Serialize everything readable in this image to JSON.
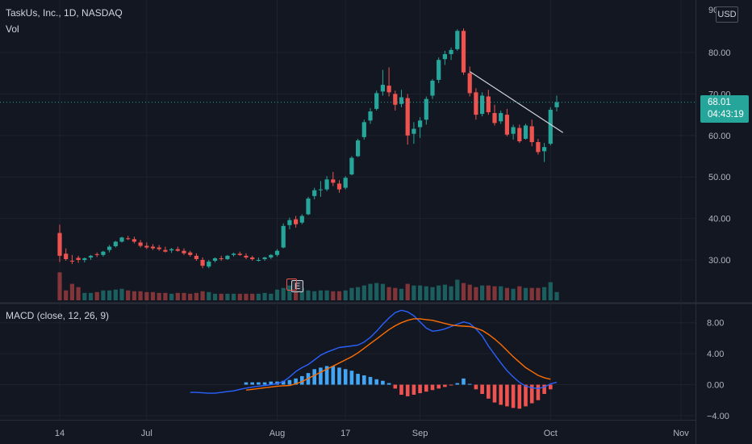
{
  "header": {
    "symbol_line": "TaskUs, Inc., 1D, NASDAQ",
    "vol_label": "Vol"
  },
  "currency_badge": "USD",
  "price_tag": {
    "value": "68.01",
    "countdown": "04:43:19",
    "color": "#26a69a"
  },
  "macd_label": "MACD (close, 12, 26, 9)",
  "earnings_marker": "E",
  "colors": {
    "bg": "#131722",
    "up": "#26a69a",
    "down": "#ef5350",
    "macd_line": "#2962ff",
    "signal_line": "#ff6d00",
    "hist_pos": "#42a5f5",
    "hist_neg": "#ef5350",
    "grid": "#1e222d",
    "text": "#b2b5be"
  },
  "chart_data": [
    {
      "type": "candlestick",
      "panel": "price",
      "ylim": [
        20,
        90
      ],
      "y_ticks": [
        "80.00",
        "70.00",
        "60.00",
        "50.00",
        "40.00",
        "30.00"
      ],
      "y_tick_values": [
        80,
        70,
        60,
        50,
        40,
        30
      ],
      "top_label": "90",
      "x_ticks": [
        "14",
        "Jul",
        "Aug",
        "17",
        "Sep",
        "Oct",
        "Nov"
      ],
      "x_tick_index": [
        0,
        14,
        35,
        46,
        58,
        79,
        100
      ],
      "candles": [
        [
          null,
          36.5,
          38.5,
          29.5,
          31.0
        ],
        [
          31.0,
          31.5,
          32.8,
          29.8,
          30.2
        ],
        [
          30.2,
          29.8,
          31.2,
          29.0,
          29.6
        ],
        [
          29.6,
          30.5,
          31.0,
          29.3,
          30.0
        ],
        [
          30.0,
          30.0,
          30.6,
          29.4,
          30.4
        ],
        [
          30.4,
          30.6,
          31.2,
          30.0,
          31.0
        ],
        [
          31.0,
          31.4,
          31.8,
          30.7,
          31.2
        ],
        [
          31.2,
          31.2,
          32.2,
          30.8,
          32.0
        ],
        [
          32.0,
          32.4,
          33.6,
          31.8,
          33.2
        ],
        [
          33.2,
          33.3,
          34.6,
          33.0,
          34.4
        ],
        [
          34.4,
          34.4,
          35.6,
          34.2,
          35.4
        ],
        [
          35.4,
          35.2,
          35.8,
          34.8,
          35.0
        ],
        [
          35.0,
          35.0,
          35.6,
          34.0,
          34.4
        ],
        [
          34.4,
          34.2,
          34.8,
          33.0,
          33.4
        ],
        [
          33.4,
          33.4,
          34.2,
          32.6,
          33.0
        ],
        [
          33.0,
          33.2,
          33.8,
          32.4,
          32.8
        ],
        [
          32.8,
          33.0,
          33.6,
          32.2,
          32.6
        ],
        [
          32.6,
          32.4,
          33.2,
          31.8,
          32.0
        ],
        [
          32.0,
          32.3,
          32.9,
          31.7,
          32.6
        ],
        [
          32.6,
          32.6,
          33.2,
          32.0,
          32.2
        ],
        [
          32.2,
          32.2,
          32.8,
          31.2,
          31.6
        ],
        [
          31.6,
          31.8,
          32.2,
          30.8,
          31.2
        ],
        [
          31.2,
          31.0,
          31.6,
          29.8,
          30.2
        ],
        [
          30.2,
          30.0,
          30.6,
          28.0,
          28.6
        ],
        [
          28.6,
          28.4,
          30.0,
          28.0,
          29.6
        ],
        [
          29.6,
          29.8,
          30.6,
          29.4,
          30.4
        ],
        [
          30.4,
          30.4,
          31.0,
          29.8,
          30.2
        ],
        [
          30.2,
          30.2,
          31.2,
          30.0,
          31.0
        ],
        [
          31.0,
          31.2,
          31.8,
          30.8,
          31.5
        ],
        [
          31.5,
          31.5,
          32.0,
          31.0,
          31.2
        ],
        [
          31.2,
          31.0,
          31.6,
          30.2,
          30.6
        ],
        [
          30.6,
          30.6,
          31.0,
          29.8,
          30.2
        ],
        [
          30.2,
          30.0,
          30.6,
          29.6,
          30.0
        ],
        [
          30.0,
          30.2,
          30.8,
          29.8,
          30.6
        ],
        [
          30.6,
          30.6,
          31.4,
          30.2,
          31.2
        ],
        [
          31.2,
          31.2,
          32.6,
          30.8,
          32.2
        ],
        [
          32.2,
          33.0,
          38.8,
          32.8,
          38.2
        ],
        [
          38.2,
          38.4,
          40.2,
          37.4,
          39.6
        ],
        [
          39.6,
          39.8,
          40.6,
          37.8,
          38.6
        ],
        [
          38.6,
          39.0,
          41.0,
          38.6,
          40.6
        ],
        [
          40.6,
          41.0,
          45.2,
          40.8,
          44.8
        ],
        [
          44.8,
          45.4,
          47.4,
          44.6,
          46.8
        ],
        [
          46.8,
          46.8,
          49.0,
          45.2,
          47.0
        ],
        [
          47.0,
          47.0,
          50.2,
          46.6,
          49.4
        ],
        [
          49.4,
          49.4,
          51.2,
          47.8,
          48.6
        ],
        [
          48.6,
          48.4,
          49.2,
          46.2,
          47.0
        ],
        [
          47.0,
          47.4,
          50.2,
          47.0,
          49.8
        ],
        [
          49.8,
          50.6,
          55.0,
          50.4,
          54.6
        ],
        [
          54.6,
          55.0,
          59.2,
          54.8,
          58.8
        ],
        [
          58.8,
          59.6,
          63.8,
          59.0,
          63.2
        ],
        [
          63.2,
          63.6,
          66.6,
          62.8,
          65.8
        ],
        [
          65.8,
          66.4,
          70.8,
          66.0,
          70.2
        ],
        [
          70.2,
          70.6,
          75.8,
          69.6,
          72.2
        ],
        [
          72.2,
          72.0,
          76.4,
          69.4,
          70.4
        ],
        [
          70.4,
          70.0,
          70.8,
          66.0,
          67.4
        ],
        [
          67.4,
          67.6,
          71.0,
          66.8,
          69.2
        ],
        [
          69.2,
          69.0,
          70.0,
          57.8,
          60.0
        ],
        [
          60.0,
          60.4,
          63.2,
          58.0,
          61.6
        ],
        [
          61.6,
          62.0,
          64.4,
          59.4,
          63.6
        ],
        [
          63.6,
          63.8,
          69.4,
          62.6,
          68.8
        ],
        [
          68.8,
          69.6,
          73.6,
          68.8,
          73.2
        ],
        [
          73.2,
          73.4,
          78.8,
          72.6,
          78.2
        ],
        [
          78.2,
          78.4,
          80.4,
          77.0,
          79.6
        ],
        [
          79.6,
          79.6,
          81.2,
          78.2,
          80.6
        ],
        [
          80.6,
          80.8,
          85.6,
          80.4,
          85.2
        ],
        [
          85.2,
          85.2,
          85.8,
          74.6,
          75.2
        ],
        [
          75.2,
          75.0,
          76.6,
          69.4,
          70.2
        ],
        [
          70.2,
          70.4,
          71.4,
          63.8,
          65.0
        ],
        [
          65.0,
          65.2,
          70.4,
          64.6,
          69.6
        ],
        [
          69.6,
          69.4,
          71.0,
          65.0,
          65.6
        ],
        [
          65.6,
          65.4,
          67.4,
          62.4,
          63.0
        ],
        [
          63.0,
          63.4,
          66.0,
          62.8,
          65.4
        ],
        [
          65.4,
          65.0,
          66.4,
          59.8,
          60.2
        ],
        [
          60.2,
          60.4,
          62.6,
          59.0,
          62.0
        ],
        [
          62.0,
          61.8,
          62.6,
          58.2,
          58.6
        ],
        [
          58.6,
          59.2,
          62.8,
          59.0,
          62.4
        ],
        [
          62.4,
          62.2,
          63.8,
          57.4,
          58.4
        ],
        [
          58.4,
          58.4,
          59.2,
          55.4,
          56.0
        ],
        [
          56.0,
          56.2,
          58.2,
          53.6,
          57.2
        ],
        [
          57.2,
          58.0,
          66.8,
          57.6,
          66.2
        ],
        [
          66.2,
          66.8,
          69.6,
          65.8,
          68.01
        ]
      ],
      "trendline": {
        "from": [
          66,
          75.4
        ],
        "to": [
          81,
          60.7
        ]
      },
      "current_price": 68.01
    },
    {
      "type": "bar",
      "panel": "volume",
      "series_name": "Vol",
      "values": [
        34,
        12,
        20,
        16,
        9,
        9,
        10,
        12,
        12,
        13,
        14,
        12,
        11,
        11,
        10,
        10,
        9,
        9,
        8,
        9,
        9,
        8,
        9,
        11,
        10,
        8,
        8,
        8,
        8,
        8,
        8,
        8,
        8,
        9,
        8,
        13,
        15,
        18,
        14,
        15,
        12,
        11,
        12,
        12,
        11,
        11,
        12,
        15,
        16,
        18,
        20,
        21,
        20,
        16,
        15,
        14,
        20,
        18,
        18,
        17,
        16,
        18,
        19,
        17,
        25,
        21,
        19,
        16,
        18,
        18,
        17,
        17,
        15,
        14,
        17,
        15,
        15,
        15,
        16,
        22,
        10
      ]
    },
    {
      "type": "line",
      "panel": "macd",
      "title": "MACD (close, 12, 26, 9)",
      "ylim": [
        -4.5,
        10.5
      ],
      "y_ticks": [
        "8.00",
        "4.00",
        "0.00",
        "−4.00"
      ],
      "y_tick_values": [
        8,
        4,
        0,
        -4
      ],
      "series": [
        {
          "key": "macd",
          "x_start": 21,
          "values": [
            -1.0,
            -1.0,
            -1.05,
            -1.1,
            -1.1,
            -1.0,
            -0.9,
            -0.8,
            -0.6,
            -0.45,
            -0.3,
            -0.2,
            -0.1,
            0.0,
            0.15,
            0.4,
            1.0,
            1.7,
            2.2,
            2.6,
            3.2,
            3.8,
            4.2,
            4.5,
            4.8,
            4.9,
            5.0,
            5.1,
            5.5,
            6.1,
            6.9,
            7.8,
            8.6,
            9.3,
            9.6,
            9.4,
            8.9,
            8.1,
            7.3,
            6.9,
            7.0,
            7.2,
            7.5,
            7.8,
            8.1,
            7.9,
            7.2,
            6.3,
            5.0,
            3.9,
            2.8,
            1.8,
            1.0,
            0.3,
            -0.2,
            -0.4,
            -0.5,
            -0.3,
            0.1,
            0.3
          ]
        },
        {
          "key": "signal",
          "x_start": 30,
          "values": [
            -0.7,
            -0.6,
            -0.5,
            -0.4,
            -0.3,
            -0.2,
            -0.15,
            -0.1,
            0.1,
            0.4,
            0.8,
            1.2,
            1.6,
            2.0,
            2.4,
            2.8,
            3.2,
            3.6,
            4.1,
            4.7,
            5.3,
            5.9,
            6.5,
            7.1,
            7.6,
            8.0,
            8.3,
            8.5,
            8.5,
            8.4,
            8.3,
            8.1,
            7.9,
            7.7,
            7.6,
            7.55,
            7.5,
            7.3,
            7.0,
            6.5,
            5.9,
            5.2,
            4.4,
            3.6,
            2.9,
            2.2,
            1.7,
            1.2,
            0.9,
            0.7
          ]
        }
      ],
      "histogram_x_start": 30,
      "histogram": [
        0.3,
        0.3,
        0.3,
        0.3,
        0.4,
        0.4,
        0.5,
        0.6,
        0.8,
        1.1,
        1.5,
        2.0,
        2.2,
        2.4,
        2.4,
        2.2,
        2.0,
        1.8,
        1.4,
        1.2,
        1.0,
        0.7,
        0.5,
        0.2,
        -0.5,
        -1.3,
        -1.5,
        -1.3,
        -1.1,
        -0.9,
        -0.7,
        -0.5,
        -0.3,
        -0.1,
        0.2,
        0.8,
        0.1,
        -0.6,
        -1.2,
        -1.8,
        -2.3,
        -2.6,
        -2.8,
        -3.0,
        -3.1,
        -2.8,
        -2.4,
        -2.0,
        -1.2,
        -0.6
      ]
    }
  ]
}
